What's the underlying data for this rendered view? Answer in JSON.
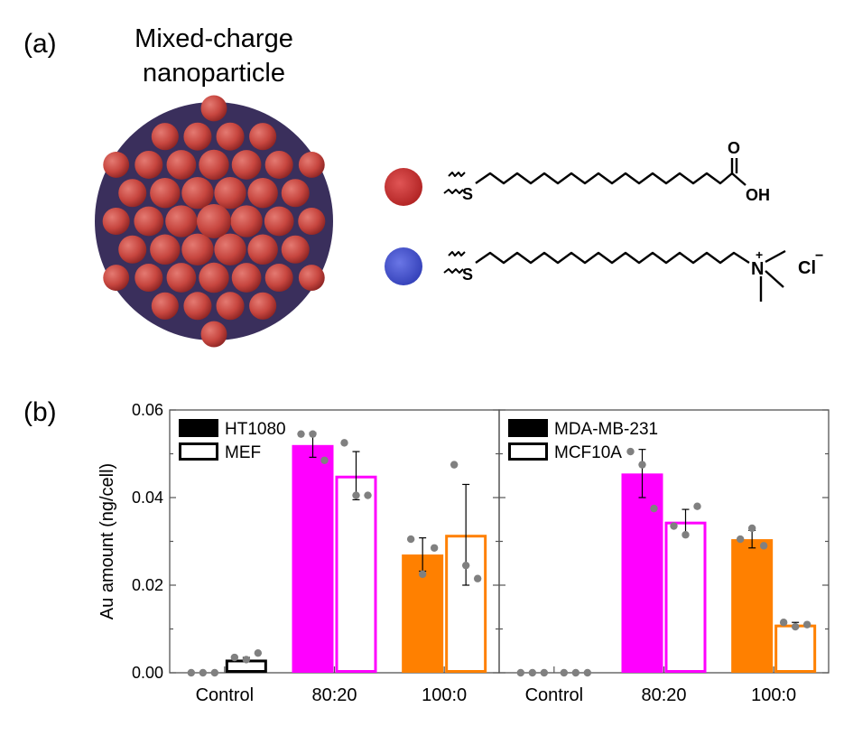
{
  "panel_a": {
    "label": "(a)",
    "title_line1": "Mixed-charge",
    "title_line2": "nanoparticle",
    "ligand_colors": {
      "anionic": "#cc3a3a",
      "cationic": "#4a57c8"
    },
    "ligand1": {
      "s": "S",
      "carbonyl_o": "O",
      "oh": "OH"
    },
    "ligand2": {
      "s": "S",
      "n": "N",
      "plus": "+",
      "counter_ion": "Cl",
      "minus": "−"
    }
  },
  "panel_b": {
    "label": "(b)"
  },
  "colors": {
    "black": "#000000",
    "magenta": "#ff00ff",
    "orange": "#ff8000",
    "dots": "#808080",
    "axis": "#555555"
  },
  "chart_data": [
    {
      "type": "bar",
      "panel": "left",
      "ylabel": "Au amount (ng/cell)",
      "ylim": [
        0,
        0.06
      ],
      "yticks": [
        "0.00",
        "0.02",
        "0.04",
        "0.06"
      ],
      "categories": [
        "Control",
        "80:20",
        "100:0"
      ],
      "legend": {
        "placement": "top-left",
        "entries": [
          "HT1080",
          "MEF"
        ]
      },
      "series": [
        {
          "name": "HT1080",
          "style": "filled",
          "values": [
            0.0,
            0.052,
            0.027
          ],
          "errors": [
            0.0,
            0.0028,
            0.0038
          ],
          "bar_colors": [
            "#000000",
            "#ff00ff",
            "#ff8000"
          ],
          "points": [
            [
              0.0,
              0.0,
              0.0
            ],
            [
              0.0545,
              0.0545,
              0.0485
            ],
            [
              0.0305,
              0.0225,
              0.0285
            ]
          ]
        },
        {
          "name": "MEF",
          "style": "outlined",
          "values": [
            0.003,
            0.045,
            0.0315
          ],
          "errors": [
            0.0005,
            0.0055,
            0.0115
          ],
          "bar_colors": [
            "#000000",
            "#ff00ff",
            "#ff8000"
          ],
          "points": [
            [
              0.0035,
              0.003,
              0.0045
            ],
            [
              0.0525,
              0.0405,
              0.0405
            ],
            [
              0.0475,
              0.0245,
              0.0215
            ]
          ]
        }
      ]
    },
    {
      "type": "bar",
      "panel": "right",
      "ylim": [
        0,
        0.06
      ],
      "categories": [
        "Control",
        "80:20",
        "100:0"
      ],
      "legend": {
        "placement": "top-left",
        "entries": [
          "MDA-MB-231",
          "MCF10A"
        ]
      },
      "series": [
        {
          "name": "MDA-MB-231",
          "style": "filled",
          "values": [
            0.0,
            0.0455,
            0.0305
          ],
          "errors": [
            0.0,
            0.0055,
            0.002
          ],
          "bar_colors": [
            "#000000",
            "#ff00ff",
            "#ff8000"
          ],
          "points": [
            [
              0.0,
              0.0,
              0.0
            ],
            [
              0.0505,
              0.0475,
              0.0375
            ],
            [
              0.0305,
              0.033,
              0.029
            ]
          ]
        },
        {
          "name": "MCF10A",
          "style": "outlined",
          "values": [
            0.0,
            0.0345,
            0.011
          ],
          "errors": [
            0.0,
            0.0028,
            0.0005
          ],
          "bar_colors": [
            "#000000",
            "#ff00ff",
            "#ff8000"
          ],
          "points": [
            [
              0.0,
              0.0,
              0.0
            ],
            [
              0.0335,
              0.0315,
              0.038
            ],
            [
              0.0115,
              0.0105,
              0.011
            ]
          ]
        }
      ]
    }
  ]
}
